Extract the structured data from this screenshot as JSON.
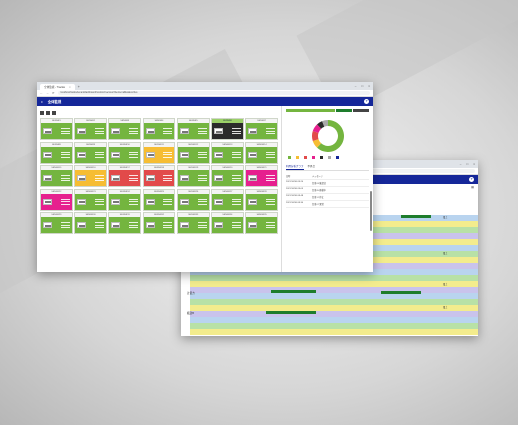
{
  "window_front": {
    "tab_title": "全体監視 - Trackie",
    "url": "localhost/trackie/tenant/dashboard/monitor/overview?device=all&status=live",
    "app_title": "全体監視",
    "help_icon": "question-icon",
    "right_panel": {
      "tabs": [
        "利用分析グラフ",
        "不具合"
      ],
      "table_header": [
        "日時",
        "メッセージ"
      ],
      "rows": [
        [
          "2021/10/30 09:20",
          "台車03 確認済"
        ],
        [
          "2021/10/30 09:05",
          "台車05 移動中"
        ],
        [
          "2021/10/30 08:48",
          "台車12 停止"
        ],
        [
          "2021/10/30 08:30",
          "台車07 異常"
        ]
      ]
    },
    "tiles": [
      {
        "id": "SENSR1",
        "color": "green"
      },
      {
        "id": "SENSR2",
        "color": "green"
      },
      {
        "id": "SENSR3",
        "color": "green"
      },
      {
        "id": "SENSR4",
        "color": "green"
      },
      {
        "id": "SENSR5",
        "color": "green"
      },
      {
        "id": "SENSR6",
        "color": "dark"
      },
      {
        "id": "SENSR7",
        "color": "green"
      },
      {
        "id": "SENSR8",
        "color": "green"
      },
      {
        "id": "SENSR9",
        "color": "green"
      },
      {
        "id": "SENSR10",
        "color": "green"
      },
      {
        "id": "SENSR11",
        "color": "yellow"
      },
      {
        "id": "SENSR12",
        "color": "green"
      },
      {
        "id": "SENSR13",
        "color": "green"
      },
      {
        "id": "SENSR14",
        "color": "green"
      },
      {
        "id": "SENSR15",
        "color": "green"
      },
      {
        "id": "SENSR16",
        "color": "yellow"
      },
      {
        "id": "SENSR17",
        "color": "red"
      },
      {
        "id": "SENSR18",
        "color": "red"
      },
      {
        "id": "SENSR19",
        "color": "green"
      },
      {
        "id": "SENSR20",
        "color": "green"
      },
      {
        "id": "SENSR21",
        "color": "pink"
      },
      {
        "id": "SENSR22",
        "color": "pink"
      },
      {
        "id": "SENSR23",
        "color": "green"
      },
      {
        "id": "SENSR24",
        "color": "green"
      },
      {
        "id": "SENSR25",
        "color": "green"
      },
      {
        "id": "SENSR26",
        "color": "green"
      },
      {
        "id": "SENSR27",
        "color": "green"
      },
      {
        "id": "SENSR28",
        "color": "green"
      },
      {
        "id": "SENSR29",
        "color": "green"
      },
      {
        "id": "SENSR30",
        "color": "green"
      },
      {
        "id": "SENSR31",
        "color": "green"
      },
      {
        "id": "SENSR32",
        "color": "green"
      },
      {
        "id": "SENSR33",
        "color": "green"
      },
      {
        "id": "SENSR34",
        "color": "green"
      },
      {
        "id": "SENSR35",
        "color": "green"
      }
    ],
    "status_gauge": [
      {
        "color": "#74b53f",
        "value": 60
      },
      {
        "color": "#1e7d2c",
        "value": 20
      },
      {
        "color": "#444",
        "value": 20
      }
    ],
    "donut": [
      {
        "color": "#74b53f",
        "value": 62
      },
      {
        "color": "#f6bd33",
        "value": 8
      },
      {
        "color": "#e24a4a",
        "value": 10
      },
      {
        "color": "#e6208e",
        "value": 8
      },
      {
        "color": "#2b2b2b",
        "value": 6
      },
      {
        "color": "#a9a9a9",
        "value": 6
      }
    ],
    "legend_colors": [
      "#74b53f",
      "#f6bd33",
      "#e24a4a",
      "#e6208e",
      "#2b2b2b",
      "#a9a9a9",
      "#152799"
    ]
  },
  "window_back": {
    "tab_title": "稼働状況 - Trackie",
    "url": "localhost/trackie/tenant/dashboard/timeline",
    "row_labels": [
      "計量方",
      "搬送B"
    ],
    "tags": [
      "電上",
      "電上",
      "電上",
      "電上"
    ]
  },
  "colors": {
    "brand": "#152799",
    "ok": "#74b53f",
    "warn": "#f6bd33",
    "error": "#e24a4a",
    "alert": "#e6208e"
  }
}
